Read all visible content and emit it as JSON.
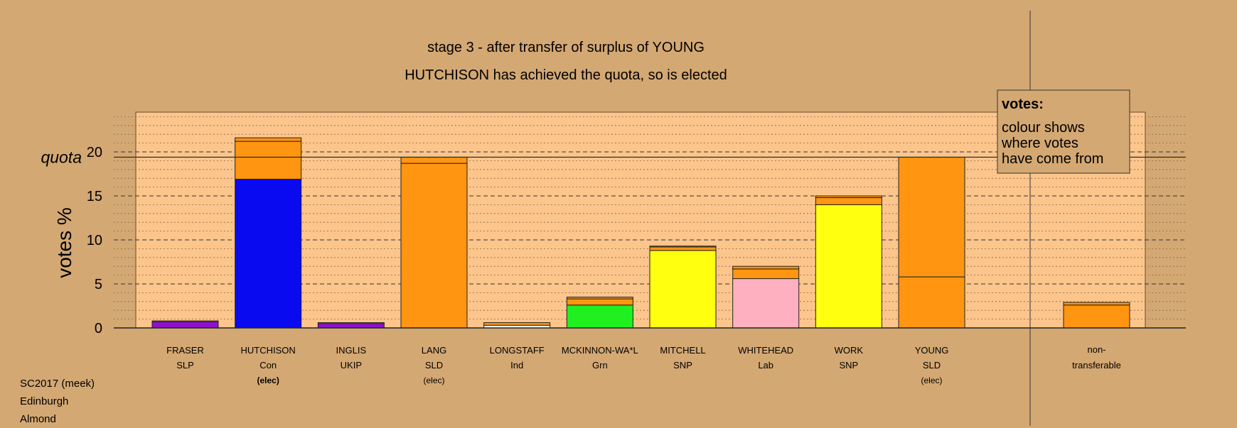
{
  "chart_data": {
    "type": "bar",
    "title": "stage 3 - after transfer of surplus of YOUNG",
    "subtitle": "HUTCHISON has achieved the quota, so is elected",
    "ylabel": "votes %",
    "quota_label": "quota",
    "quota_value": 19.4,
    "ylim": [
      0,
      24.5
    ],
    "yticks": [
      "0",
      "5",
      "10",
      "15",
      "20"
    ],
    "grid": true,
    "legend": {
      "title": "votes:",
      "lines": [
        "colour shows",
        "where votes",
        "have come from"
      ],
      "position": "top-right"
    },
    "colors": {
      "background": "#d4a873",
      "plot_background": "#fbc58c",
      "SLP": "#9010d0",
      "Con": "#0a0af0",
      "UKIP": "#9010d0",
      "SLD": "#ff9510",
      "Ind": "#ffffff",
      "Grn": "#20f020",
      "SNP": "#ffff10",
      "Lab": "#ffb0c0"
    },
    "candidates": [
      {
        "name": "FRASER",
        "party": "SLP",
        "status": "",
        "segments": [
          {
            "value": 0.7,
            "color": "#9010d0"
          },
          {
            "value": 0.1,
            "color": "#ff9510"
          }
        ]
      },
      {
        "name": "HUTCHISON",
        "party": "Con",
        "status": "(elec)",
        "status_bold": true,
        "segments": [
          {
            "value": 16.9,
            "color": "#0a0af0"
          },
          {
            "value": 4.3,
            "color": "#ff9510"
          },
          {
            "value": 0.4,
            "color": "#ff9510"
          }
        ]
      },
      {
        "name": "INGLIS",
        "party": "UKIP",
        "status": "",
        "segments": [
          {
            "value": 0.5,
            "color": "#9010d0"
          },
          {
            "value": 0.1,
            "color": "#ff9510"
          }
        ]
      },
      {
        "name": "LANG",
        "party": "SLD",
        "status": "(elec)",
        "segments": [
          {
            "value": 18.7,
            "color": "#ff9510"
          },
          {
            "value": 0.7,
            "color": "#ff9510"
          }
        ]
      },
      {
        "name": "LONGSTAFF",
        "party": "Ind",
        "status": "",
        "segments": [
          {
            "value": 0.3,
            "color": "#ffffff"
          },
          {
            "value": 0.3,
            "color": "#ff9510"
          }
        ]
      },
      {
        "name": "MCKINNON-WA*L",
        "party": "Grn",
        "status": "",
        "segments": [
          {
            "value": 2.6,
            "color": "#20f020"
          },
          {
            "value": 0.7,
            "color": "#ff9510"
          },
          {
            "value": 0.2,
            "color": "#ff9510"
          }
        ]
      },
      {
        "name": "MITCHELL",
        "party": "SNP",
        "status": "",
        "segments": [
          {
            "value": 8.8,
            "color": "#ffff10"
          },
          {
            "value": 0.4,
            "color": "#ff9510"
          },
          {
            "value": 0.1,
            "color": "#ff9510"
          }
        ]
      },
      {
        "name": "WHITEHEAD",
        "party": "Lab",
        "status": "",
        "segments": [
          {
            "value": 5.6,
            "color": "#ffb0c0"
          },
          {
            "value": 1.1,
            "color": "#ff9510"
          },
          {
            "value": 0.3,
            "color": "#ff9510"
          }
        ]
      },
      {
        "name": "WORK",
        "party": "SNP",
        "status": "",
        "segments": [
          {
            "value": 14.0,
            "color": "#ffff10"
          },
          {
            "value": 0.8,
            "color": "#ff9510"
          },
          {
            "value": 0.2,
            "color": "#ff9510"
          }
        ]
      },
      {
        "name": "YOUNG",
        "party": "SLD",
        "status": "(elec)",
        "segments": [
          {
            "value": 5.8,
            "color": "#ff9510"
          },
          {
            "value": 13.6,
            "color": "#ff9510"
          }
        ]
      }
    ],
    "non_transferable": {
      "label_line1": "non-",
      "label_line2": "transferable",
      "segments": [
        {
          "value": 2.6,
          "color": "#ff9510"
        },
        {
          "value": 0.3,
          "color": "#ff9510"
        }
      ]
    }
  },
  "info": {
    "line1": "SC2017 (meek)",
    "line2": "Edinburgh",
    "line3": "Almond"
  }
}
